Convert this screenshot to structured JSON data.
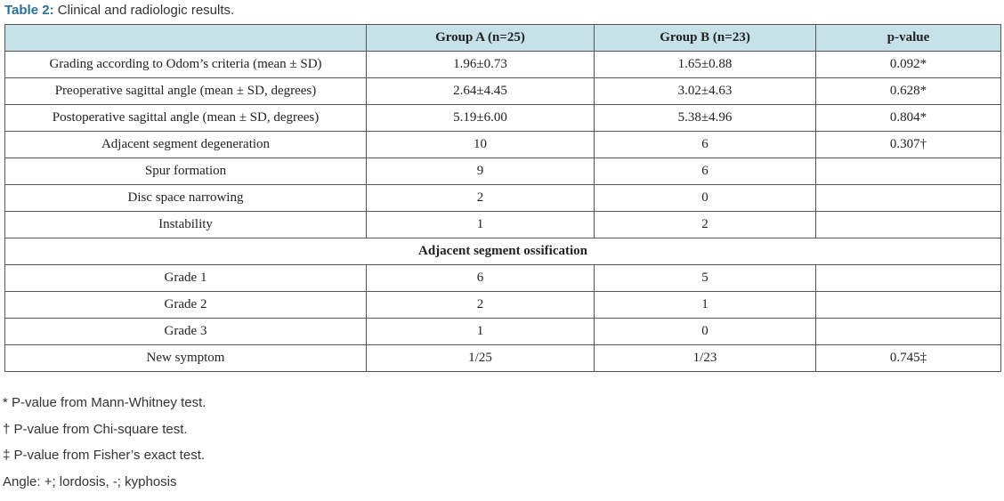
{
  "caption": {
    "label": "Table 2:",
    "text": "Clinical and radiologic results."
  },
  "table": {
    "header": [
      "",
      "Group A (n=25)",
      "Group B (n=23)",
      "p-value"
    ],
    "rows": [
      [
        "Grading according to Odom’s criteria (mean ± SD)",
        "1.96±0.73",
        "1.65±0.88",
        "0.092*"
      ],
      [
        "Preoperative sagittal angle (mean ± SD, degrees)",
        "2.64±4.45",
        "3.02±4.63",
        "0.628*"
      ],
      [
        "Postoperative sagittal angle (mean ± SD, degrees)",
        "5.19±6.00",
        "5.38±4.96",
        "0.804*"
      ],
      [
        "Adjacent segment degeneration",
        "10",
        "6",
        "0.307†"
      ],
      [
        "Spur formation",
        "9",
        "6",
        null
      ],
      [
        "Disc space narrowing",
        "2",
        "0",
        null
      ],
      [
        "Instability",
        "1",
        "2",
        null
      ],
      [
        "Adjacent segment ossification"
      ],
      [
        "Grade 1",
        "6",
        "5",
        null
      ],
      [
        "Grade 2",
        "2",
        "1",
        null
      ],
      [
        "Grade 3",
        "1",
        "0",
        null
      ],
      [
        "New symptom",
        "1/25",
        "1/23",
        "0.745‡"
      ]
    ]
  },
  "footnotes": [
    "* P-value from Mann-Whitney test.",
    "† P-value from Chi-square test.",
    "‡ P-value from Fisher’s exact test.",
    "Angle: +; lordosis, -; kyphosis"
  ]
}
